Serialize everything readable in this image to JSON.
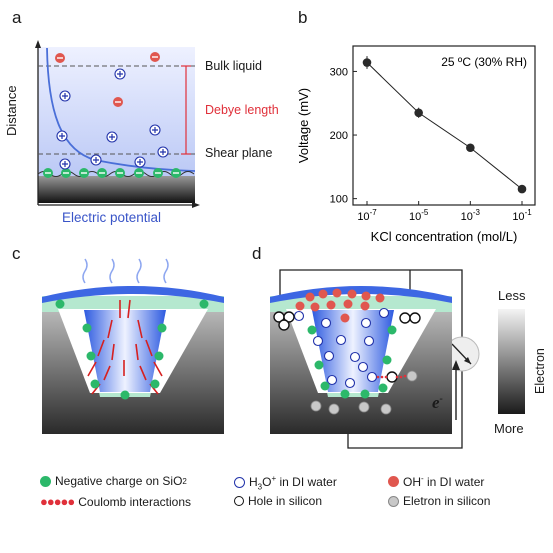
{
  "panels": {
    "a": {
      "label": "a",
      "y_axis": "Distance",
      "x_axis": "Electric potential",
      "bulk": "Bulk liquid",
      "debye": "Debye length",
      "shear": "Shear plane"
    },
    "b": {
      "label": "b",
      "annotation": "25 ºC (30% RH)"
    },
    "c": {
      "label": "c"
    },
    "d": {
      "label": "d",
      "less": "Less",
      "more": "More",
      "electron": "Electron",
      "e_symbol": "e"
    }
  },
  "chart_data": {
    "type": "line",
    "x": [
      "10^-7",
      "10^-5",
      "10^-3",
      "10^-1"
    ],
    "y": [
      314,
      235,
      180,
      115
    ],
    "error": [
      10,
      8,
      5,
      4
    ],
    "xlabel": "KCl concentration (mol/L)",
    "ylabel": "Voltage (mV)",
    "x_ticks": [
      "10-7",
      "10-5",
      "10-3",
      "10-1"
    ],
    "y_ticks": [
      "100",
      "200",
      "300"
    ],
    "ylim": [
      90,
      340
    ],
    "x_scale": "log"
  },
  "legend": {
    "neg_sio2": "Negative charge on SiO",
    "neg_sio2_sub": "2",
    "h3o": "H",
    "h3o_sub": "3",
    "h3o_rest": "O",
    "h3o_sup": "+",
    "h3o_tail": " in DI water",
    "oh": "OH",
    "oh_sup": "-",
    "oh_tail": " in DI water",
    "coulomb": "Coulomb interactions",
    "hole": "Hole in silicon",
    "electron": "Eletron in silicon"
  },
  "colors": {
    "green": "#2cb86a",
    "blue": "#2233aa",
    "red": "#e0574f",
    "debye_red": "#e0303a",
    "curve": "#4a6fd8"
  }
}
